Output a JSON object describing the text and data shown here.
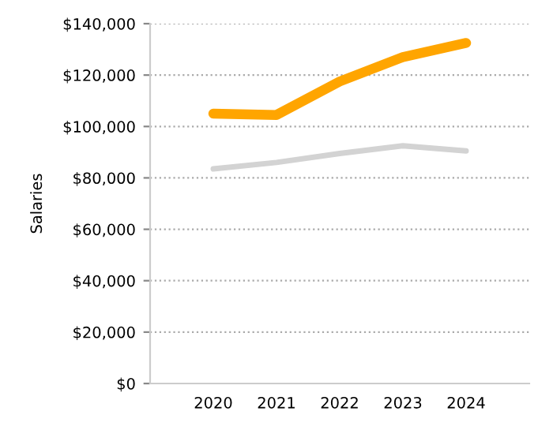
{
  "chart_data": {
    "type": "line",
    "ylabel": "Salaries",
    "categories": [
      "2020",
      "2021",
      "2022",
      "2023",
      "2024"
    ],
    "series": [
      {
        "color": "#ffa500",
        "values": [
          105000,
          104500,
          117500,
          127000,
          132500
        ]
      },
      {
        "color": "#d3d3d3",
        "values": [
          83500,
          86000,
          89500,
          92500,
          90500
        ]
      }
    ],
    "ylim": [
      0,
      140000
    ],
    "yticks": [
      {
        "value": 0,
        "label": "$0"
      },
      {
        "value": 20000,
        "label": "$20,000"
      },
      {
        "value": 40000,
        "label": "$40,000"
      },
      {
        "value": 60000,
        "label": "$60,000"
      },
      {
        "value": 80000,
        "label": "$80,000"
      },
      {
        "value": 100000,
        "label": "$100,000"
      },
      {
        "value": 120000,
        "label": "$120,000"
      },
      {
        "value": 140000,
        "label": "$140,000"
      }
    ],
    "grid": "y",
    "marker": "none",
    "line_style": "solid"
  }
}
